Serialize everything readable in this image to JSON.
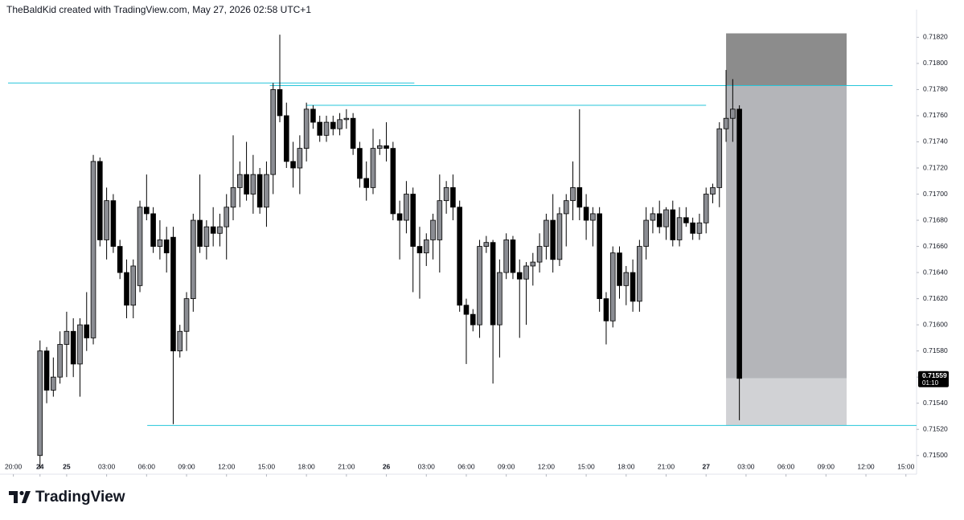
{
  "header": {
    "text": "TheBaldKid created with TradingView.com, May 27, 2026 02:58 UTC+1"
  },
  "footer": {
    "brand": "TradingView"
  },
  "chart_data": {
    "type": "candlestick",
    "x": [
      0,
      1,
      2,
      3,
      4,
      5,
      6,
      7,
      8,
      9,
      10,
      11,
      12,
      13,
      14,
      15,
      16,
      17,
      18,
      19,
      20,
      21,
      22,
      23,
      24,
      25,
      26,
      27,
      28,
      29,
      30,
      31,
      32,
      33,
      34,
      35,
      36,
      37,
      38,
      39,
      40,
      41,
      42,
      43,
      44,
      45,
      46,
      47,
      48,
      49,
      50,
      51,
      52,
      53,
      54,
      55,
      56,
      57,
      58,
      59,
      60,
      61,
      62,
      63,
      64,
      65,
      66,
      67,
      68,
      69,
      70,
      71,
      72,
      73,
      74,
      75,
      76,
      77,
      78,
      79,
      80,
      81,
      82,
      83,
      84,
      85,
      86,
      87,
      88,
      89,
      90,
      91,
      92,
      93,
      94,
      95,
      96,
      97,
      98,
      99,
      100,
      101,
      102,
      103,
      104,
      105
    ],
    "open": [
      0.715,
      0.7158,
      0.7155,
      0.7156,
      0.71585,
      0.71595,
      0.7157,
      0.716,
      0.7159,
      0.71725,
      0.71665,
      0.71695,
      0.7166,
      0.7164,
      0.71615,
      0.7163,
      0.7169,
      0.71685,
      0.7166,
      0.71665,
      0.71667,
      0.7158,
      0.71595,
      0.7162,
      0.7168,
      0.7166,
      0.71675,
      0.7167,
      0.71675,
      0.7169,
      0.71705,
      0.71715,
      0.717,
      0.71715,
      0.7169,
      0.71715,
      0.7178,
      0.7176,
      0.71725,
      0.7172,
      0.71735,
      0.71765,
      0.71755,
      0.71745,
      0.71755,
      0.7175,
      0.71757,
      0.71758,
      0.71735,
      0.71712,
      0.71705,
      0.71735,
      0.71737,
      0.71735,
      0.71685,
      0.7168,
      0.717,
      0.7166,
      0.71655,
      0.71665,
      0.71665,
      0.71695,
      0.71705,
      0.7169,
      0.71615,
      0.71608,
      0.716,
      0.7166,
      0.71663,
      0.716,
      0.7164,
      0.71665,
      0.7164,
      0.71635,
      0.71645,
      0.71648,
      0.7166,
      0.7168,
      0.7165,
      0.71685,
      0.71695,
      0.71705,
      0.7169,
      0.7168,
      0.71685,
      0.7162,
      0.71603,
      0.71655,
      0.7163,
      0.7164,
      0.71618,
      0.7166,
      0.7168,
      0.71685,
      0.71675,
      0.71688,
      0.71665,
      0.71682,
      0.71678,
      0.7167,
      0.71678,
      0.717,
      0.71705,
      0.7175,
      0.71758,
      0.71765
    ],
    "high": [
      0.71588,
      0.71583,
      0.71575,
      0.71595,
      0.7161,
      0.71605,
      0.71605,
      0.71625,
      0.7173,
      0.71728,
      0.71705,
      0.717,
      0.71665,
      0.7165,
      0.7165,
      0.71695,
      0.71715,
      0.7169,
      0.7168,
      0.71675,
      0.71675,
      0.716,
      0.71625,
      0.71685,
      0.71715,
      0.7168,
      0.7169,
      0.71685,
      0.717,
      0.71745,
      0.71725,
      0.7174,
      0.7173,
      0.7172,
      0.71725,
      0.71785,
      0.71822,
      0.7177,
      0.7174,
      0.71745,
      0.7177,
      0.71768,
      0.7176,
      0.7176,
      0.7176,
      0.71762,
      0.71765,
      0.71762,
      0.7174,
      0.71725,
      0.7175,
      0.71742,
      0.71755,
      0.7174,
      0.71695,
      0.7171,
      0.71705,
      0.71675,
      0.7167,
      0.71685,
      0.71715,
      0.7171,
      0.71715,
      0.71695,
      0.7162,
      0.71612,
      0.71665,
      0.71668,
      0.71665,
      0.7165,
      0.7167,
      0.71668,
      0.7165,
      0.71648,
      0.71655,
      0.7167,
      0.71685,
      0.717,
      0.7169,
      0.717,
      0.71725,
      0.71765,
      0.717,
      0.7169,
      0.7169,
      0.71625,
      0.7166,
      0.7166,
      0.71645,
      0.7165,
      0.71665,
      0.7169,
      0.7169,
      0.71695,
      0.7169,
      0.71695,
      0.7169,
      0.7169,
      0.71682,
      0.71685,
      0.71705,
      0.71708,
      0.71755,
      0.71795,
      0.71788,
      0.71768
    ],
    "low": [
      0.7149,
      0.7154,
      0.71545,
      0.71555,
      0.7156,
      0.7156,
      0.71545,
      0.7158,
      0.71585,
      0.7166,
      0.7165,
      0.71655,
      0.71635,
      0.71605,
      0.71605,
      0.71625,
      0.7168,
      0.71655,
      0.7165,
      0.7164,
      0.71524,
      0.71575,
      0.7158,
      0.7161,
      0.71655,
      0.7165,
      0.7166,
      0.7166,
      0.7165,
      0.7168,
      0.7169,
      0.71695,
      0.71685,
      0.71685,
      0.71675,
      0.717,
      0.71755,
      0.7172,
      0.71705,
      0.717,
      0.71725,
      0.7175,
      0.7174,
      0.7174,
      0.71745,
      0.71745,
      0.7175,
      0.7173,
      0.71705,
      0.71695,
      0.717,
      0.7173,
      0.71725,
      0.7168,
      0.7165,
      0.7167,
      0.71625,
      0.7162,
      0.71645,
      0.7165,
      0.7164,
      0.71685,
      0.7168,
      0.7161,
      0.7157,
      0.71595,
      0.7159,
      0.71655,
      0.71555,
      0.71575,
      0.71635,
      0.71635,
      0.7159,
      0.716,
      0.7163,
      0.7164,
      0.7165,
      0.7164,
      0.71645,
      0.7166,
      0.7168,
      0.7168,
      0.71665,
      0.7166,
      0.7161,
      0.71585,
      0.71598,
      0.7162,
      0.71615,
      0.7161,
      0.7161,
      0.7165,
      0.7167,
      0.7167,
      0.71665,
      0.7166,
      0.7166,
      0.71675,
      0.71665,
      0.71665,
      0.7167,
      0.71693,
      0.7169,
      0.7174,
      0.7174,
      0.71527
    ],
    "close": [
      0.7158,
      0.7155,
      0.7156,
      0.71585,
      0.71595,
      0.7157,
      0.716,
      0.7159,
      0.71725,
      0.71665,
      0.71695,
      0.7166,
      0.7164,
      0.71615,
      0.71645,
      0.7169,
      0.71685,
      0.7166,
      0.71665,
      0.71655,
      0.7158,
      0.71595,
      0.7162,
      0.7168,
      0.7166,
      0.71675,
      0.7167,
      0.71675,
      0.7169,
      0.71705,
      0.71715,
      0.717,
      0.71715,
      0.7169,
      0.71715,
      0.7178,
      0.7176,
      0.71725,
      0.7172,
      0.71735,
      0.71765,
      0.71755,
      0.71745,
      0.71755,
      0.7175,
      0.71757,
      0.71758,
      0.71735,
      0.71712,
      0.71705,
      0.71735,
      0.71737,
      0.71735,
      0.71685,
      0.7168,
      0.717,
      0.7166,
      0.71655,
      0.71665,
      0.7168,
      0.71695,
      0.71705,
      0.7169,
      0.71615,
      0.71608,
      0.716,
      0.7166,
      0.71663,
      0.716,
      0.7164,
      0.71665,
      0.7164,
      0.71635,
      0.71645,
      0.71648,
      0.7166,
      0.7168,
      0.7165,
      0.71685,
      0.71695,
      0.71705,
      0.7169,
      0.7168,
      0.71685,
      0.7162,
      0.71603,
      0.71655,
      0.7163,
      0.7164,
      0.71618,
      0.7166,
      0.7168,
      0.71685,
      0.71675,
      0.71688,
      0.71665,
      0.71682,
      0.71678,
      0.7167,
      0.71678,
      0.717,
      0.71705,
      0.7175,
      0.71758,
      0.71765,
      0.71559
    ],
    "up_color": "#8b8d93",
    "down_color": "#000000",
    "xlim": [
      -4.8,
      131.6
    ],
    "ylim": [
      0.71498,
      0.71835
    ],
    "xticks": [
      {
        "value": -4,
        "label": "20:00"
      },
      {
        "value": 0,
        "label": "24"
      },
      {
        "value": 4,
        "label": "25"
      },
      {
        "value": 10,
        "label": "03:00"
      },
      {
        "value": 16,
        "label": "06:00"
      },
      {
        "value": 22,
        "label": "09:00"
      },
      {
        "value": 28,
        "label": "12:00"
      },
      {
        "value": 34,
        "label": "15:00"
      },
      {
        "value": 40,
        "label": "18:00"
      },
      {
        "value": 46,
        "label": "21:00"
      },
      {
        "value": 52,
        "label": "26"
      },
      {
        "value": 58,
        "label": "03:00"
      },
      {
        "value": 64,
        "label": "06:00"
      },
      {
        "value": 70,
        "label": "09:00"
      },
      {
        "value": 76,
        "label": "12:00"
      },
      {
        "value": 82,
        "label": "15:00"
      },
      {
        "value": 88,
        "label": "18:00"
      },
      {
        "value": 94,
        "label": "21:00"
      },
      {
        "value": 100,
        "label": "27"
      },
      {
        "value": 106,
        "label": "03:00"
      },
      {
        "value": 112,
        "label": "06:00"
      },
      {
        "value": 118,
        "label": "09:00"
      },
      {
        "value": 124,
        "label": "12:00"
      },
      {
        "value": 130,
        "label": "15:00"
      }
    ],
    "yticks": [
      {
        "value": 0.715,
        "label": "0.71500"
      },
      {
        "value": 0.7152,
        "label": "0.71520"
      },
      {
        "value": 0.7154,
        "label": "0.71540"
      },
      {
        "value": 0.7156,
        "label": "0.71560"
      },
      {
        "value": 0.7158,
        "label": "0.71580"
      },
      {
        "value": 0.716,
        "label": "0.71600"
      },
      {
        "value": 0.7162,
        "label": "0.71620"
      },
      {
        "value": 0.7164,
        "label": "0.71640"
      },
      {
        "value": 0.7166,
        "label": "0.71660"
      },
      {
        "value": 0.7168,
        "label": "0.71680"
      },
      {
        "value": 0.717,
        "label": "0.71700"
      },
      {
        "value": 0.7172,
        "label": "0.71720"
      },
      {
        "value": 0.7174,
        "label": "0.71740"
      },
      {
        "value": 0.7176,
        "label": "0.71760"
      },
      {
        "value": 0.7178,
        "label": "0.71780"
      },
      {
        "value": 0.718,
        "label": "0.71800"
      },
      {
        "value": 0.7182,
        "label": "0.71820"
      }
    ],
    "hlines": [
      {
        "value": 0.71785,
        "x": [
          -4.8,
          56.2
        ],
        "color": "#26c6da"
      },
      {
        "value": 0.71783,
        "x": [
          34.5,
          128.0
        ],
        "color": "#26c6da"
      },
      {
        "value": 0.71768,
        "x": [
          40.0,
          100.0
        ],
        "color": "#26c6da"
      },
      {
        "value": 0.71523,
        "x": [
          16.1,
          131.6
        ],
        "color": "#26c6da"
      }
    ],
    "position": {
      "x": [
        103.0,
        121.1
      ],
      "stop": 0.71823,
      "entry": 0.71783,
      "current": 0.71559,
      "target": 0.71523
    },
    "last_price": 0.71559,
    "countdown": "01:10"
  }
}
